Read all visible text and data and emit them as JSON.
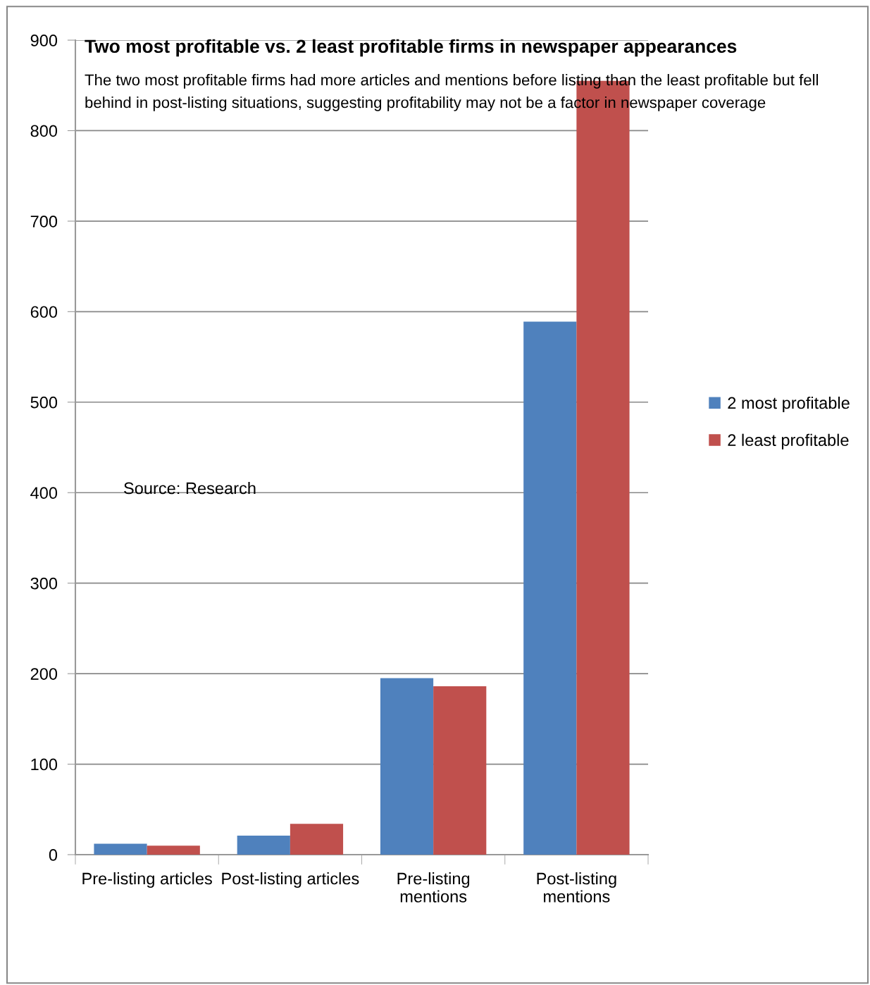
{
  "chart_data": {
    "type": "bar",
    "title": "Two most profitable vs. 2 least profitable firms in newspaper appearances",
    "subtitle": "The two most profitable firms had more articles and mentions before listing than the least profitable but fell behind in post-listing situations, suggesting profitability may not be a factor in newspaper coverage",
    "annotations": [
      "Source: Research"
    ],
    "categories": [
      "Pre-listing articles",
      "Post-listing articles",
      "Pre-listing\nmentions",
      "Post-listing\nmentions"
    ],
    "series": [
      {
        "name": "2 most profitable",
        "color": "#4f81bd",
        "values": [
          12,
          21,
          195,
          589
        ]
      },
      {
        "name": "2 least profitable",
        "color": "#c0504d",
        "values": [
          10,
          34,
          186,
          855
        ]
      }
    ],
    "ylim": [
      0,
      900
    ],
    "yticks": [
      0,
      100,
      200,
      300,
      400,
      500,
      600,
      700,
      800,
      900
    ],
    "grid": "y",
    "legend": "right"
  }
}
